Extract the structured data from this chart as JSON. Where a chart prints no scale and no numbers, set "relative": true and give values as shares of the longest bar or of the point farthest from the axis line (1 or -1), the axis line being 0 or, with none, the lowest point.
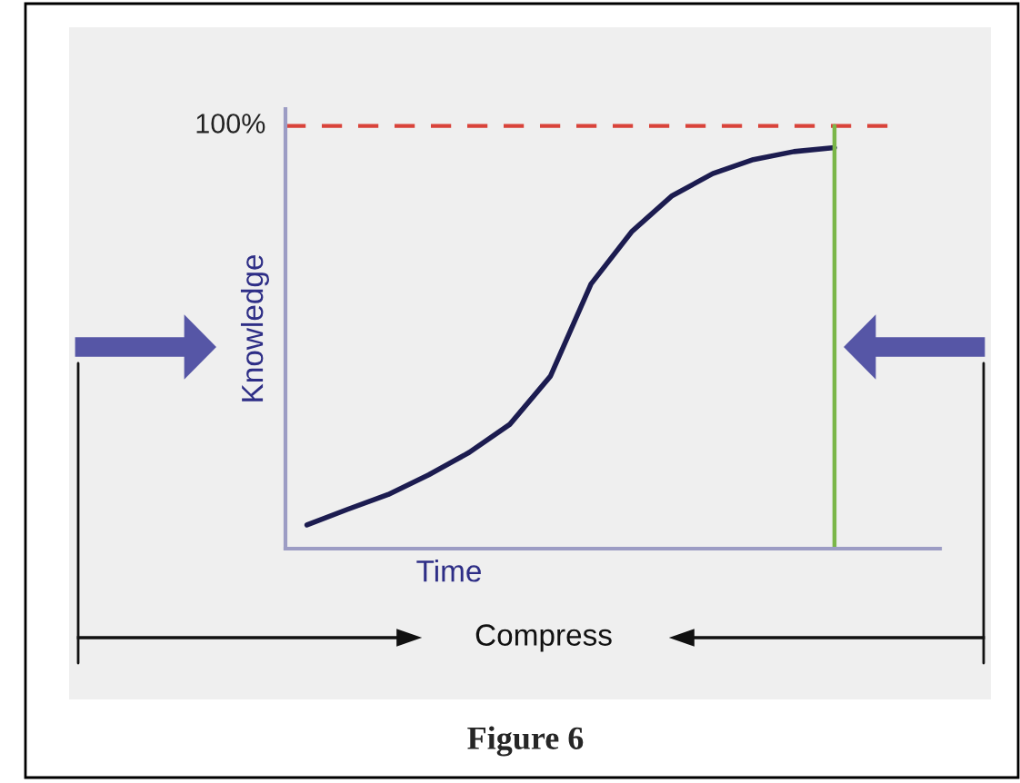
{
  "chart_data": {
    "type": "line",
    "xlabel": "Time",
    "ylabel": "Knowledge",
    "categories": [
      null,
      null,
      null,
      null,
      null,
      null,
      null,
      null,
      null,
      null,
      null,
      null,
      null,
      null
    ],
    "relative": true,
    "series": [
      {
        "color": "#1c1c50",
        "values": [
          0.059,
          0.098,
          0.135,
          0.184,
          0.24,
          0.31,
          0.43,
          0.66,
          0.79,
          0.88,
          0.935,
          0.97,
          0.99,
          1.0
        ]
      }
    ],
    "ref_lines": [
      {
        "axis": "y",
        "value": 1.054,
        "color": "#d9433a",
        "line_style": "dashed"
      }
    ],
    "annotations": [
      "100%",
      "Compress",
      "Figure 6"
    ],
    "line_style": "solid"
  }
}
